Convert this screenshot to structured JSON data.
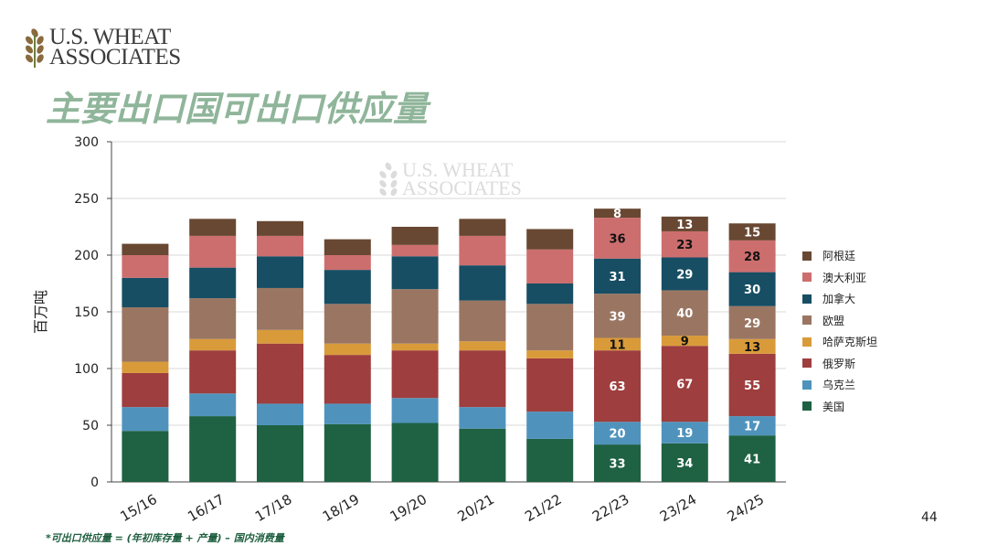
{
  "logo": {
    "line1": "U.S. WHEAT",
    "line2": "ASSOCIATES"
  },
  "title": "主要出口国可出口供应量",
  "footnote": "*可出口供应量 = (年初库存量 + 产量) – 国内消费量",
  "page_number": "44",
  "chart_data": {
    "type": "bar",
    "stacked": true,
    "categories": [
      "15/16",
      "16/17",
      "17/18",
      "18/19",
      "19/20",
      "20/21",
      "21/22",
      "22/23",
      "23/24",
      "24/25"
    ],
    "ylabel": "百万吨",
    "ylim": [
      0,
      300
    ],
    "yticks": [
      0,
      50,
      100,
      150,
      200,
      250,
      300
    ],
    "grid": true,
    "legend_position": "right",
    "series": [
      {
        "name": "美国",
        "color": "#1f6143",
        "values": [
          45,
          58,
          50,
          51,
          52,
          47,
          38,
          33,
          34,
          41
        ]
      },
      {
        "name": "乌克兰",
        "color": "#4f93bd",
        "values": [
          21,
          20,
          19,
          18,
          22,
          19,
          24,
          20,
          19,
          17
        ]
      },
      {
        "name": "俄罗斯",
        "color": "#9e3e3e",
        "values": [
          30,
          38,
          53,
          43,
          42,
          50,
          47,
          63,
          67,
          55
        ]
      },
      {
        "name": "哈萨克斯坦",
        "color": "#d99b3a",
        "values": [
          10,
          10,
          12,
          10,
          6,
          8,
          7,
          11,
          9,
          13
        ]
      },
      {
        "name": "欧盟",
        "color": "#9a7662",
        "values": [
          48,
          36,
          37,
          35,
          48,
          36,
          41,
          39,
          40,
          29
        ]
      },
      {
        "name": "加拿大",
        "color": "#174e64",
        "values": [
          26,
          27,
          28,
          30,
          29,
          31,
          18,
          31,
          29,
          30
        ]
      },
      {
        "name": "澳大利亚",
        "color": "#cd6e6e",
        "values": [
          20,
          28,
          18,
          13,
          10,
          26,
          30,
          36,
          23,
          28
        ]
      },
      {
        "name": "阿根廷",
        "color": "#684832",
        "values": [
          10,
          15,
          13,
          14,
          16,
          15,
          18,
          8,
          13,
          15
        ]
      }
    ],
    "data_labels": [
      {
        "category": "22/23",
        "values": [
          "33",
          "20",
          "63",
          "11",
          "39",
          "31",
          "36",
          "8"
        ]
      },
      {
        "category": "23/24",
        "values": [
          "34",
          "19",
          "67",
          "9",
          "40",
          "29",
          "23",
          "13"
        ]
      },
      {
        "category": "24/25",
        "values": [
          "41",
          "17",
          "55",
          "13",
          "29",
          "30",
          "28",
          "15"
        ]
      }
    ],
    "watermark": {
      "line1": "U.S. WHEAT",
      "line2": "ASSOCIATES"
    }
  }
}
